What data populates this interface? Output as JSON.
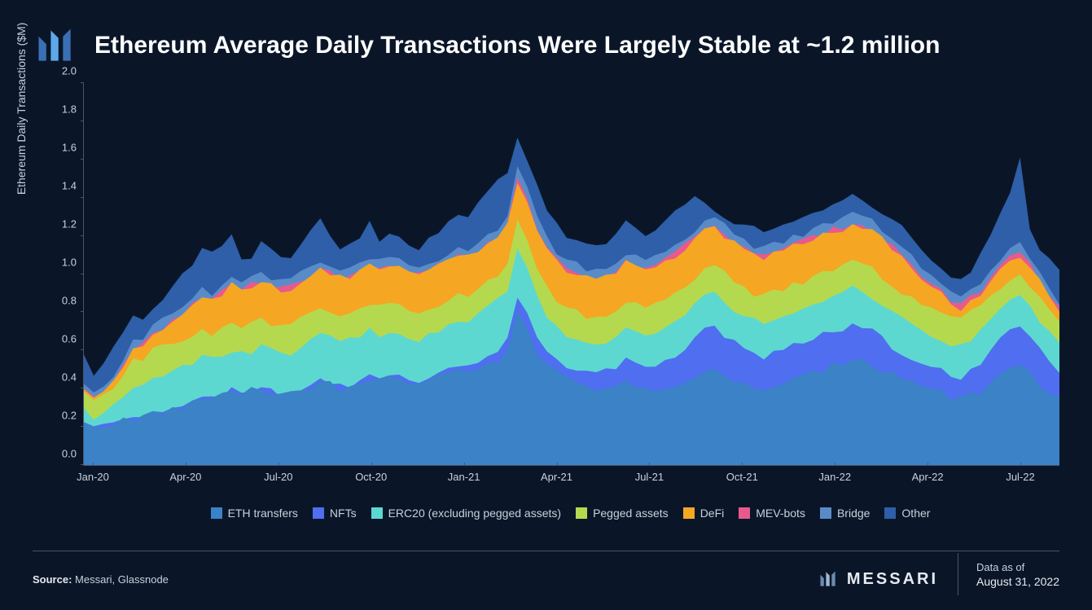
{
  "title": "Ethereum Average Daily Transactions Were Largely Stable at ~1.2 million",
  "chart": {
    "type": "stacked-area",
    "ylabel": "Ethereum Daily Transactions ($M)",
    "ylim": [
      0,
      2.0
    ],
    "ytick_step": 0.2,
    "yticks": [
      "0.0",
      "0.2",
      "0.4",
      "0.6",
      "0.8",
      "1.0",
      "1.2",
      "1.4",
      "1.6",
      "1.8",
      "2.0"
    ],
    "xticks": [
      "Jan-20",
      "Apr-20",
      "Jul-20",
      "Oct-20",
      "Jan-21",
      "Apr-21",
      "Jul-21",
      "Oct-21",
      "Jan-22",
      "Apr-22",
      "Jul-22"
    ],
    "xtick_positions_pct": [
      1,
      10.5,
      20,
      29.5,
      39,
      48.5,
      58,
      67.5,
      77,
      86.5,
      96
    ],
    "background_color": "#0a1628",
    "axis_color": "#4a5568",
    "label_color": "#c8d0db",
    "label_fontsize": 14,
    "tick_fontsize": 13,
    "series": [
      {
        "name": "ETH transfers",
        "color": "#3b82c7"
      },
      {
        "name": "NFTs",
        "color": "#4f6ef0"
      },
      {
        "name": "ERC20 (excluding pegged assets)",
        "color": "#5dd8d0"
      },
      {
        "name": "Pegged assets",
        "color": "#b5d94e"
      },
      {
        "name": "DeFi",
        "color": "#f5a623"
      },
      {
        "name": "MEV-bots",
        "color": "#e85a8c"
      },
      {
        "name": "Bridge",
        "color": "#5a8bc9"
      },
      {
        "name": "Other",
        "color": "#2e5fa8"
      }
    ],
    "x": [
      0,
      1,
      2,
      3,
      4,
      5,
      6,
      7,
      8,
      9,
      10,
      11,
      12,
      13,
      14,
      15,
      16,
      17,
      18,
      19,
      20,
      21,
      22,
      23,
      24,
      25,
      26,
      27,
      28,
      29,
      30,
      31,
      32,
      33,
      34,
      35,
      36,
      37,
      38,
      39,
      40,
      41,
      42,
      43,
      44,
      45,
      46,
      47,
      48,
      49,
      50,
      51,
      52,
      53,
      54,
      55,
      56,
      57,
      58,
      59,
      60,
      61,
      62,
      63,
      64,
      65,
      66,
      67,
      68,
      69,
      70,
      71,
      72,
      73,
      74,
      75,
      76,
      77,
      78,
      79,
      80,
      81,
      82,
      83,
      84,
      85,
      86,
      87,
      88,
      89,
      90,
      91,
      92,
      93,
      94,
      95,
      96,
      97,
      98,
      99
    ],
    "stacked_top": {
      "eth": [
        0.22,
        0.18,
        0.2,
        0.22,
        0.24,
        0.23,
        0.25,
        0.27,
        0.28,
        0.3,
        0.31,
        0.33,
        0.35,
        0.34,
        0.36,
        0.38,
        0.37,
        0.39,
        0.4,
        0.38,
        0.36,
        0.37,
        0.39,
        0.41,
        0.43,
        0.42,
        0.4,
        0.41,
        0.43,
        0.45,
        0.44,
        0.46,
        0.45,
        0.43,
        0.42,
        0.44,
        0.46,
        0.48,
        0.5,
        0.49,
        0.51,
        0.53,
        0.55,
        0.6,
        0.8,
        0.7,
        0.58,
        0.52,
        0.48,
        0.46,
        0.44,
        0.42,
        0.4,
        0.41,
        0.43,
        0.44,
        0.42,
        0.4,
        0.39,
        0.38,
        0.4,
        0.42,
        0.45,
        0.48,
        0.5,
        0.47,
        0.44,
        0.42,
        0.4,
        0.38,
        0.4,
        0.42,
        0.44,
        0.46,
        0.48,
        0.5,
        0.52,
        0.54,
        0.56,
        0.55,
        0.53,
        0.5,
        0.48,
        0.46,
        0.44,
        0.42,
        0.4,
        0.38,
        0.36,
        0.34,
        0.36,
        0.38,
        0.42,
        0.46,
        0.5,
        0.52,
        0.48,
        0.42,
        0.38,
        0.34
      ],
      "nfts": [
        0.23,
        0.19,
        0.21,
        0.23,
        0.25,
        0.24,
        0.26,
        0.28,
        0.29,
        0.31,
        0.32,
        0.34,
        0.36,
        0.35,
        0.37,
        0.39,
        0.38,
        0.4,
        0.41,
        0.39,
        0.37,
        0.38,
        0.4,
        0.42,
        0.44,
        0.43,
        0.41,
        0.42,
        0.44,
        0.46,
        0.45,
        0.47,
        0.46,
        0.44,
        0.43,
        0.45,
        0.47,
        0.49,
        0.52,
        0.51,
        0.54,
        0.57,
        0.6,
        0.66,
        0.88,
        0.78,
        0.66,
        0.58,
        0.54,
        0.52,
        0.5,
        0.48,
        0.47,
        0.49,
        0.52,
        0.55,
        0.53,
        0.51,
        0.52,
        0.54,
        0.58,
        0.62,
        0.66,
        0.7,
        0.72,
        0.68,
        0.64,
        0.6,
        0.58,
        0.56,
        0.58,
        0.6,
        0.62,
        0.64,
        0.66,
        0.68,
        0.7,
        0.72,
        0.74,
        0.72,
        0.7,
        0.66,
        0.62,
        0.58,
        0.56,
        0.54,
        0.52,
        0.5,
        0.48,
        0.46,
        0.5,
        0.54,
        0.6,
        0.66,
        0.72,
        0.74,
        0.68,
        0.6,
        0.54,
        0.48
      ],
      "erc20": [
        0.3,
        0.25,
        0.28,
        0.32,
        0.36,
        0.4,
        0.42,
        0.46,
        0.48,
        0.5,
        0.52,
        0.54,
        0.56,
        0.55,
        0.58,
        0.6,
        0.58,
        0.6,
        0.62,
        0.6,
        0.58,
        0.59,
        0.62,
        0.65,
        0.68,
        0.66,
        0.64,
        0.65,
        0.68,
        0.7,
        0.68,
        0.7,
        0.69,
        0.67,
        0.66,
        0.68,
        0.7,
        0.72,
        0.76,
        0.75,
        0.78,
        0.82,
        0.86,
        0.92,
        1.14,
        1.02,
        0.88,
        0.78,
        0.72,
        0.68,
        0.66,
        0.64,
        0.62,
        0.64,
        0.68,
        0.72,
        0.7,
        0.68,
        0.7,
        0.72,
        0.76,
        0.8,
        0.84,
        0.88,
        0.9,
        0.86,
        0.82,
        0.78,
        0.76,
        0.74,
        0.76,
        0.78,
        0.8,
        0.82,
        0.84,
        0.86,
        0.88,
        0.9,
        0.92,
        0.9,
        0.88,
        0.84,
        0.8,
        0.76,
        0.73,
        0.7,
        0.68,
        0.66,
        0.64,
        0.62,
        0.66,
        0.7,
        0.76,
        0.82,
        0.88,
        0.9,
        0.84,
        0.76,
        0.7,
        0.64
      ],
      "pegged": [
        0.38,
        0.32,
        0.36,
        0.42,
        0.48,
        0.54,
        0.56,
        0.6,
        0.62,
        0.64,
        0.66,
        0.68,
        0.7,
        0.69,
        0.72,
        0.74,
        0.72,
        0.74,
        0.76,
        0.74,
        0.72,
        0.73,
        0.76,
        0.79,
        0.82,
        0.8,
        0.78,
        0.79,
        0.82,
        0.84,
        0.82,
        0.84,
        0.83,
        0.81,
        0.8,
        0.82,
        0.84,
        0.86,
        0.9,
        0.89,
        0.92,
        0.96,
        1.0,
        1.06,
        1.28,
        1.16,
        1.02,
        0.92,
        0.86,
        0.82,
        0.8,
        0.78,
        0.76,
        0.78,
        0.82,
        0.86,
        0.84,
        0.82,
        0.84,
        0.86,
        0.9,
        0.94,
        0.98,
        1.02,
        1.04,
        1.0,
        0.96,
        0.92,
        0.9,
        0.88,
        0.9,
        0.92,
        0.94,
        0.96,
        0.98,
        1.0,
        1.02,
        1.04,
        1.06,
        1.04,
        1.02,
        0.98,
        0.94,
        0.9,
        0.87,
        0.84,
        0.82,
        0.8,
        0.78,
        0.76,
        0.8,
        0.84,
        0.88,
        0.92,
        0.96,
        0.98,
        0.94,
        0.88,
        0.82,
        0.76
      ],
      "defi": [
        0.4,
        0.34,
        0.38,
        0.45,
        0.52,
        0.6,
        0.63,
        0.68,
        0.72,
        0.76,
        0.8,
        0.84,
        0.88,
        0.86,
        0.9,
        0.94,
        0.92,
        0.94,
        0.96,
        0.94,
        0.92,
        0.93,
        0.96,
        0.99,
        1.02,
        1.0,
        0.98,
        0.99,
        1.02,
        1.04,
        1.02,
        1.04,
        1.03,
        1.01,
        1.0,
        1.02,
        1.04,
        1.06,
        1.1,
        1.09,
        1.12,
        1.16,
        1.2,
        1.26,
        1.48,
        1.36,
        1.22,
        1.12,
        1.06,
        1.02,
        1.0,
        0.98,
        0.96,
        0.98,
        1.02,
        1.06,
        1.04,
        1.02,
        1.04,
        1.06,
        1.1,
        1.14,
        1.18,
        1.22,
        1.24,
        1.2,
        1.16,
        1.12,
        1.1,
        1.08,
        1.1,
        1.12,
        1.14,
        1.16,
        1.18,
        1.2,
        1.22,
        1.24,
        1.26,
        1.24,
        1.22,
        1.18,
        1.14,
        1.1,
        1.04,
        0.98,
        0.94,
        0.9,
        0.86,
        0.82,
        0.86,
        0.9,
        0.96,
        1.02,
        1.08,
        1.1,
        1.04,
        0.96,
        0.88,
        0.8
      ],
      "mev": [
        0.4,
        0.34,
        0.38,
        0.45,
        0.52,
        0.6,
        0.63,
        0.68,
        0.72,
        0.76,
        0.8,
        0.84,
        0.88,
        0.86,
        0.9,
        0.94,
        0.92,
        0.94,
        0.96,
        0.94,
        0.92,
        0.93,
        0.96,
        0.99,
        1.02,
        1.0,
        0.98,
        0.99,
        1.02,
        1.04,
        1.02,
        1.04,
        1.03,
        1.01,
        1.0,
        1.02,
        1.04,
        1.06,
        1.1,
        1.09,
        1.12,
        1.16,
        1.2,
        1.27,
        1.5,
        1.38,
        1.24,
        1.13,
        1.07,
        1.03,
        1.01,
        0.99,
        0.97,
        0.99,
        1.03,
        1.07,
        1.05,
        1.03,
        1.05,
        1.07,
        1.11,
        1.15,
        1.19,
        1.23,
        1.25,
        1.21,
        1.17,
        1.13,
        1.11,
        1.09,
        1.11,
        1.13,
        1.15,
        1.17,
        1.19,
        1.21,
        1.23,
        1.25,
        1.27,
        1.25,
        1.23,
        1.19,
        1.15,
        1.11,
        1.05,
        0.99,
        0.95,
        0.91,
        0.87,
        0.83,
        0.87,
        0.91,
        0.97,
        1.03,
        1.09,
        1.11,
        1.05,
        0.97,
        0.89,
        0.81
      ],
      "bridge": [
        0.42,
        0.36,
        0.4,
        0.48,
        0.56,
        0.64,
        0.67,
        0.72,
        0.76,
        0.8,
        0.84,
        0.88,
        0.92,
        0.9,
        0.94,
        0.98,
        0.96,
        0.98,
        1.0,
        0.98,
        0.96,
        0.97,
        1.0,
        1.03,
        1.06,
        1.04,
        1.02,
        1.03,
        1.06,
        1.08,
        1.06,
        1.08,
        1.07,
        1.05,
        1.04,
        1.06,
        1.08,
        1.1,
        1.14,
        1.13,
        1.16,
        1.2,
        1.24,
        1.31,
        1.56,
        1.44,
        1.3,
        1.18,
        1.11,
        1.07,
        1.05,
        1.03,
        1.01,
        1.03,
        1.07,
        1.11,
        1.09,
        1.07,
        1.09,
        1.11,
        1.15,
        1.19,
        1.23,
        1.27,
        1.29,
        1.25,
        1.21,
        1.17,
        1.15,
        1.13,
        1.15,
        1.17,
        1.19,
        1.21,
        1.23,
        1.25,
        1.27,
        1.29,
        1.31,
        1.29,
        1.27,
        1.23,
        1.19,
        1.15,
        1.09,
        1.03,
        0.99,
        0.95,
        0.91,
        0.87,
        0.91,
        0.95,
        1.01,
        1.07,
        1.13,
        1.15,
        1.09,
        1.01,
        0.93,
        0.85
      ],
      "other": [
        0.58,
        0.48,
        0.54,
        0.62,
        0.7,
        0.78,
        0.76,
        0.82,
        0.88,
        0.94,
        1.0,
        1.06,
        1.12,
        1.1,
        1.16,
        1.22,
        1.06,
        1.1,
        1.16,
        1.12,
        1.08,
        1.1,
        1.16,
        1.22,
        1.28,
        1.18,
        1.12,
        1.14,
        1.2,
        1.26,
        1.18,
        1.22,
        1.2,
        1.16,
        1.14,
        1.18,
        1.22,
        1.26,
        1.32,
        1.3,
        1.36,
        1.42,
        1.48,
        1.54,
        1.72,
        1.58,
        1.46,
        1.34,
        1.26,
        1.2,
        1.18,
        1.16,
        1.14,
        1.16,
        1.22,
        1.28,
        1.24,
        1.2,
        1.24,
        1.28,
        1.34,
        1.38,
        1.4,
        1.36,
        1.32,
        1.3,
        1.28,
        1.26,
        1.24,
        1.22,
        1.24,
        1.26,
        1.28,
        1.3,
        1.32,
        1.34,
        1.36,
        1.38,
        1.4,
        1.38,
        1.36,
        1.32,
        1.28,
        1.24,
        1.18,
        1.12,
        1.08,
        1.04,
        1.0,
        0.96,
        1.02,
        1.1,
        1.2,
        1.32,
        1.44,
        1.62,
        1.24,
        1.14,
        1.08,
        1.02
      ]
    }
  },
  "footer": {
    "source_label": "Source:",
    "source_value": "Messari, Glassnode",
    "brand": "MESSARI",
    "date_label": "Data as of",
    "date_value": "August 31, 2022"
  },
  "colors": {
    "background": "#0a1628",
    "text_primary": "#ffffff",
    "text_muted": "#c8d0db",
    "border": "#4a5568",
    "logo_light": "#5fa8e8",
    "logo_dark": "#3b6fb5"
  }
}
